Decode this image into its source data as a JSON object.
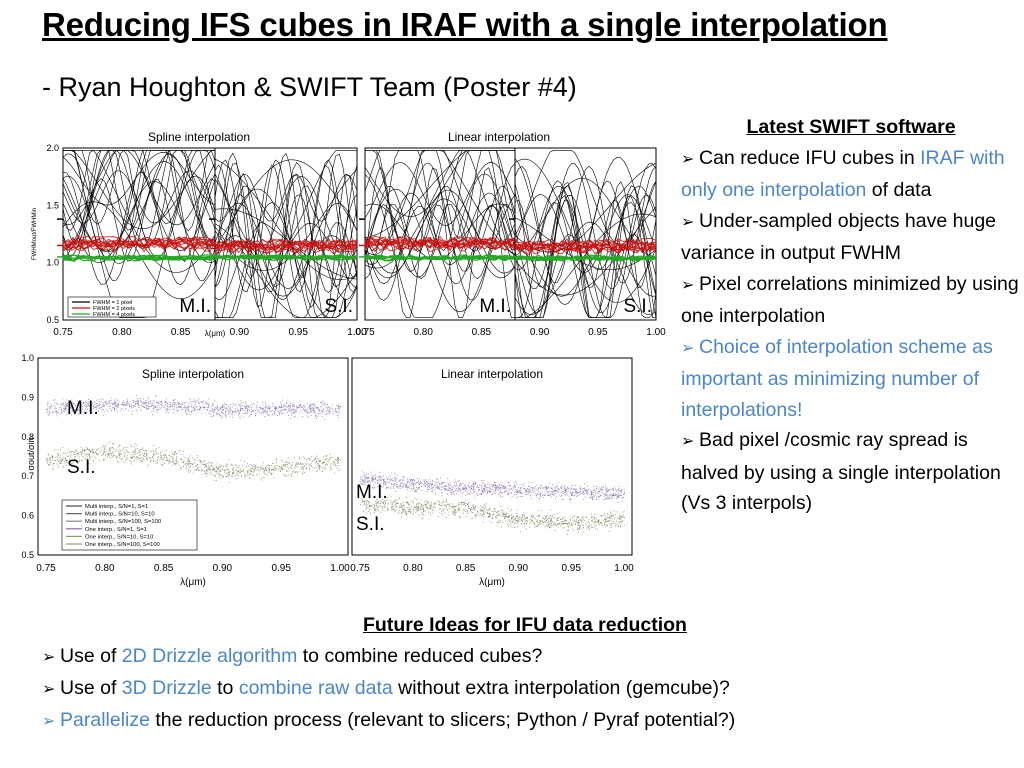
{
  "title": "Reducing IFS cubes in IRAF with a single interpolation",
  "subtitle": "- Ryan Houghton & SWIFT Team (Poster #4)",
  "right_panel": {
    "heading": "Latest SWIFT software",
    "bullets": [
      {
        "parts": [
          {
            "t": "Can reduce IFU cubes in "
          },
          {
            "t": "IRAF with only one interpolation",
            "c": "blue"
          },
          {
            "t": " of data"
          }
        ]
      },
      {
        "parts": [
          {
            "t": "Under-sampled objects have huge variance in output FWHM"
          }
        ]
      },
      {
        "parts": [
          {
            "t": "Pixel correlations minimized by using one interpolation"
          }
        ]
      },
      {
        "parts": [
          {
            "t": "Choice of interpolation scheme as important as minimizing number of interpolations!",
            "c": "blue"
          }
        ],
        "arrow": "blue"
      },
      {
        "parts": [
          {
            "t": "Bad pixel /cosmic ray spread is halved by using a single interpolation (Vs 3 interpols)"
          }
        ]
      }
    ]
  },
  "bottom": {
    "heading": "Future Ideas for IFU data reduction",
    "bullets": [
      {
        "parts": [
          {
            "t": "Use of "
          },
          {
            "t": "2D Drizzle algorithm",
            "c": "blue"
          },
          {
            "t": " to combine reduced cubes?"
          }
        ]
      },
      {
        "parts": [
          {
            "t": "Use of "
          },
          {
            "t": "3D Drizzle",
            "c": "blue"
          },
          {
            "t": " to "
          },
          {
            "t": "combine raw data",
            "c": "blue"
          },
          {
            "t": " without extra interpolation (gemcube)?"
          }
        ]
      },
      {
        "parts": [
          {
            "t": "Parallelize",
            "c": "blue"
          },
          {
            "t": " the reduction process (relevant to slicers; Python / Pyraf potential?)"
          }
        ],
        "arrow": "blue"
      }
    ]
  },
  "colors": {
    "blue": "#4a86c8",
    "red": "#cc1111",
    "green": "#22aa22",
    "purple": "#8866bb",
    "olive": "#778855"
  },
  "chart_data": [
    {
      "type": "line",
      "titles": [
        "Spline interpolation",
        "Linear interpolation"
      ],
      "ylabel": "FWHMout/FWHMin",
      "xlabel": "λ(μm)",
      "xlim": [
        0.75,
        1.0
      ],
      "ylim": [
        0.5,
        2.0
      ],
      "x_ticks": [
        "0.75",
        "0.80",
        "0.85",
        "0.90",
        "0.95",
        "1.00"
      ],
      "y_ticks": [
        "0.5",
        "1.0",
        "1.5",
        "2.0"
      ],
      "legend": [
        "FWHM = 1 pixel",
        "FWHM = 2 pixels",
        "FWHM = 4 pixels"
      ],
      "panel_labels": [
        "M.I.",
        "S.I.",
        "M.I.",
        "S.I."
      ],
      "series": [
        {
          "name": "FWHM = 1 pixel",
          "color": "#000000",
          "approx_range": [
            0.6,
            1.9
          ]
        },
        {
          "name": "FWHM = 2 pixels",
          "color": "#cc1111",
          "approx_value": 1.15
        },
        {
          "name": "FWHM = 4 pixels",
          "color": "#22aa22",
          "approx_value": 1.05
        }
      ]
    },
    {
      "type": "scatter",
      "titles": [
        "Spline interpolation",
        "Linear interpolation"
      ],
      "ylabel": "σout/σin",
      "xlabel": "λ(μm)",
      "xlim": [
        0.75,
        1.0
      ],
      "ylim": [
        0.5,
        1.0
      ],
      "x_ticks": [
        "0.75",
        "0.80",
        "0.85",
        "0.90",
        "0.95",
        "1.00"
      ],
      "y_ticks": [
        "0.5",
        "0.6",
        "0.7",
        "0.8",
        "0.9",
        "1.0"
      ],
      "legend": [
        "Multi interp., S/N=1, S=1",
        "Multi interp., S/N=10, S=10",
        "Multi interp., S/N=100, S=100",
        "One interp., S/N=1, S=1",
        "One interp., S/N=10, S=10",
        "One interp., S/N=100, S=100"
      ],
      "panel_labels": [
        "M.I.",
        "S.I.",
        "M.I.",
        "S.I."
      ],
      "series": [
        {
          "name": "Spline M.I.",
          "x": [
            0.75,
            0.8,
            0.85,
            0.9,
            0.95,
            1.0
          ],
          "y": [
            0.87,
            0.88,
            0.88,
            0.87,
            0.87,
            0.87
          ]
        },
        {
          "name": "Spline S.I.",
          "x": [
            0.75,
            0.8,
            0.85,
            0.9,
            0.95,
            1.0
          ],
          "y": [
            0.74,
            0.76,
            0.75,
            0.71,
            0.72,
            0.74
          ]
        },
        {
          "name": "Linear M.I.",
          "x": [
            0.75,
            0.8,
            0.85,
            0.9,
            0.95,
            1.0
          ],
          "y": [
            0.69,
            0.68,
            0.67,
            0.665,
            0.66,
            0.655
          ]
        },
        {
          "name": "Linear S.I.",
          "x": [
            0.75,
            0.8,
            0.85,
            0.9,
            0.95,
            1.0
          ],
          "y": [
            0.63,
            0.62,
            0.62,
            0.59,
            0.58,
            0.59
          ]
        }
      ]
    }
  ]
}
